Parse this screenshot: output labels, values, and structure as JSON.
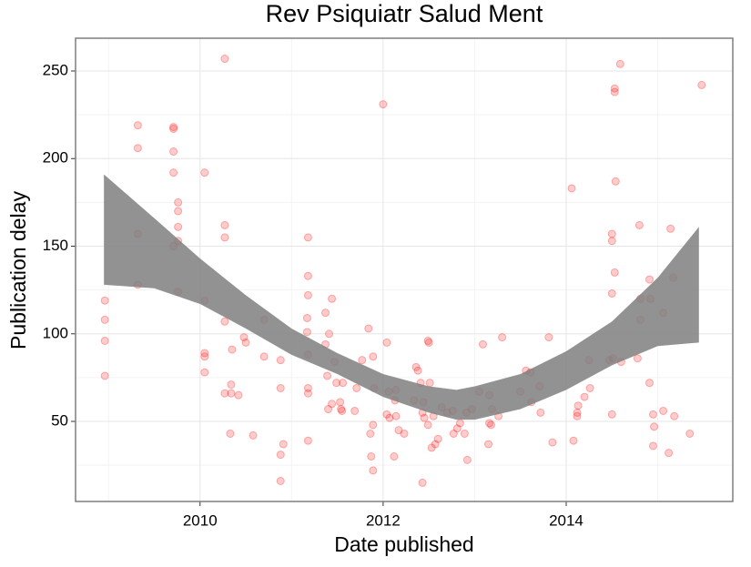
{
  "chart_data": {
    "type": "scatter",
    "title": "Rev Psiquiatr Salud Ment",
    "x_label": "Date published",
    "y_label": "Publication delay",
    "xlim": [
      2008.64,
      2015.82
    ],
    "ylim": [
      4.3,
      268.7
    ],
    "xticks": [
      2010,
      2012,
      2014
    ],
    "yticks": [
      50,
      100,
      150,
      200,
      250
    ],
    "grid": true,
    "color": "#ff0000",
    "alpha": 0.2,
    "x": [
      2008.96,
      2008.96,
      2008.96,
      2008.96,
      2009.32,
      2009.32,
      2009.32,
      2009.32,
      2009.71,
      2009.71,
      2009.71,
      2009.71,
      2009.76,
      2009.76,
      2009.76,
      2009.76,
      2009.71,
      2009.76,
      2010.05,
      2010.05,
      2010.05,
      2010.05,
      2010.05,
      2010.27,
      2010.27,
      2010.27,
      2010.27,
      2010.27,
      2010.35,
      2010.34,
      2010.34,
      2010.42,
      2010.33,
      2010.48,
      2010.5,
      2010.58,
      2010.7,
      2010.7,
      2010.88,
      2010.88,
      2010.88,
      2010.91,
      2010.88,
      2011.18,
      2011.18,
      2011.18,
      2011.17,
      2011.17,
      2011.18,
      2011.18,
      2011.18,
      2011.18,
      2011.37,
      2011.41,
      2011.37,
      2011.39,
      2011.44,
      2011.47,
      2011.49,
      2011.56,
      2011.44,
      2011.53,
      2011.4,
      2011.54,
      2011.55,
      2011.69,
      2011.71,
      2011.77,
      2011.84,
      2011.89,
      2011.86,
      2011.9,
      2011.89,
      2011.87,
      2011.89,
      2012.0,
      2012.04,
      2012.06,
      2012.07,
      2012.04,
      2012.13,
      2012.14,
      2012.12,
      2012.17,
      2012.23,
      2012.14,
      2012.36,
      2012.38,
      2012.41,
      2012.49,
      2012.5,
      2012.34,
      2012.44,
      2012.43,
      2012.51,
      2012.45,
      2012.49,
      2012.53,
      2012.55,
      2012.43,
      2012.6,
      2012.57,
      2012.64,
      2012.7,
      2012.76,
      2012.81,
      2012.77,
      2012.84,
      2012.91,
      2012.92,
      2012.89,
      2012.97,
      2013.05,
      2013.09,
      2013.16,
      2013.16,
      2013.15,
      2013.18,
      2013.19,
      2013.3,
      2013.26,
      2013.5,
      2013.56,
      2013.61,
      2013.62,
      2013.72,
      2013.71,
      2013.81,
      2013.85,
      2014.06,
      2014.08,
      2014.13,
      2014.12,
      2014.12,
      2014.2,
      2014.26,
      2014.25,
      2014.5,
      2014.5,
      2014.5,
      2014.53,
      2014.53,
      2014.54,
      2014.53,
      2014.59,
      2014.5,
      2014.6,
      2014.47,
      2014.51,
      2014.78,
      2014.8,
      2014.81,
      2014.81,
      2014.91,
      2014.91,
      2014.92,
      2014.95,
      2014.96,
      2014.95,
      2015.06,
      2015.12,
      2015.14,
      2015.18,
      2015.17,
      2015.06,
      2015.35,
      2015.48
    ],
    "y": [
      119,
      108,
      96,
      76,
      219,
      206,
      157,
      128,
      218,
      217,
      204,
      192,
      175,
      170,
      161,
      153,
      150,
      124,
      192,
      119,
      89,
      87,
      78,
      257,
      162,
      155,
      107,
      66,
      91,
      71,
      66,
      65,
      43,
      98,
      95,
      42,
      108,
      87,
      85,
      69,
      31,
      37,
      16,
      155,
      133,
      122,
      109,
      101,
      88,
      69,
      66,
      39,
      112,
      100,
      94,
      76,
      120,
      84,
      72,
      72,
      60,
      61,
      57,
      57,
      56,
      56,
      69,
      85,
      103,
      87,
      43,
      69,
      48,
      30,
      22,
      231,
      95,
      67,
      52,
      54,
      62,
      53,
      30,
      45,
      43,
      68,
      81,
      79,
      72,
      96,
      95,
      62,
      61,
      55,
      72,
      52,
      48,
      35,
      53,
      15,
      40,
      37,
      58,
      55,
      56,
      46,
      43,
      49,
      55,
      28,
      43,
      57,
      67,
      94,
      49,
      65,
      37,
      48,
      57,
      98,
      53,
      67,
      79,
      78,
      61,
      55,
      70,
      98,
      38,
      183,
      39,
      59,
      53,
      55,
      64,
      69,
      85,
      153,
      157,
      123,
      240,
      238,
      187,
      135,
      254,
      54,
      84,
      85,
      86,
      86,
      162,
      108,
      120,
      131,
      72,
      120,
      36,
      47,
      54,
      56,
      32,
      160,
      53,
      132,
      112,
      43,
      242
    ],
    "band": {
      "color": "#7f7f7f",
      "x": [
        2008.95,
        2009.5,
        2010.0,
        2010.5,
        2011.0,
        2011.5,
        2012.0,
        2012.5,
        2012.8,
        2013.0,
        2013.5,
        2014.0,
        2014.5,
        2015.0,
        2015.45
      ],
      "upper": [
        191,
        166,
        143,
        122,
        103,
        89,
        77,
        70,
        68,
        70,
        77,
        90,
        107,
        132,
        161
      ],
      "lower": [
        128,
        126,
        117,
        103,
        88,
        77,
        64,
        55,
        51,
        51,
        57,
        68,
        82,
        93,
        95
      ]
    }
  }
}
